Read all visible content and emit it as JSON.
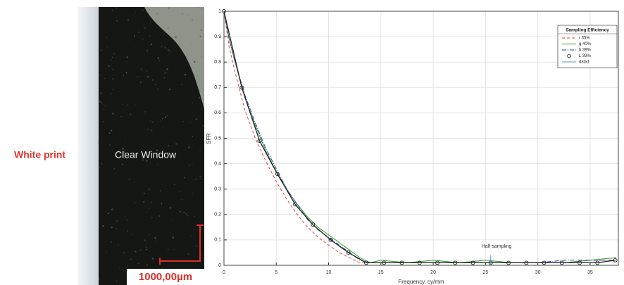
{
  "photo": {
    "left_label": "White print",
    "window_label": "Clear Window",
    "scale_label": "1000,00µm"
  },
  "chart_data": {
    "type": "line",
    "y_label": "SFR",
    "x_label": "Frequency, cy/mm",
    "legend_title": "Sampling Efficiency",
    "legend_position": "upper right",
    "annotation": "Half-sampling",
    "xlim": [
      0,
      37.7
    ],
    "ylim": [
      0,
      1
    ],
    "xticks": [
      0,
      5,
      10,
      15,
      20,
      25,
      30,
      35
    ],
    "yticks": [
      0,
      0.1,
      0.2,
      0.3,
      0.4,
      0.5,
      0.6,
      0.7,
      0.8,
      0.9,
      1
    ],
    "grid": true,
    "series": [
      {
        "name": "r 35%",
        "color": "#e8413c",
        "style": "dashed",
        "x": [
          0,
          0.5,
          1,
          2,
          3,
          4,
          5,
          6,
          7,
          8,
          9,
          10,
          11,
          12,
          13,
          14,
          15,
          17.5,
          20,
          22.5,
          25,
          27.5,
          30,
          32.5,
          35,
          37.5
        ],
        "values": [
          1,
          0.86,
          0.77,
          0.61,
          0.5,
          0.41,
          0.33,
          0.26,
          0.2,
          0.15,
          0.11,
          0.08,
          0.05,
          0.03,
          0.01,
          0.01,
          0.01,
          0.01,
          0.01,
          0.01,
          0.01,
          0.01,
          0.01,
          0.01,
          0.02,
          0.02
        ]
      },
      {
        "name": "g 40%",
        "color": "#2ea02c",
        "style": "solid",
        "x": [
          0,
          0.5,
          1,
          2,
          3,
          4,
          5,
          6,
          7,
          8,
          9,
          10,
          11,
          12,
          13,
          14,
          15,
          17.5,
          20,
          22.5,
          25,
          27.5,
          30,
          32.5,
          35,
          37.5
        ],
        "values": [
          1,
          0.89,
          0.81,
          0.66,
          0.55,
          0.45,
          0.37,
          0.3,
          0.24,
          0.19,
          0.15,
          0.12,
          0.09,
          0.06,
          0.03,
          0.01,
          0.02,
          0.01,
          0.02,
          0.01,
          0.02,
          0.01,
          0.01,
          0.01,
          0.02,
          0.03
        ]
      },
      {
        "name": "b 39%",
        "color": "#2b3fb0",
        "style": "dashdot",
        "x": [
          0,
          0.5,
          1,
          2,
          3,
          4,
          5,
          6,
          7,
          8,
          9,
          10,
          11,
          12,
          13,
          14,
          15,
          17.5,
          20,
          22.5,
          25,
          27.5,
          30,
          32.5,
          35,
          37.5
        ],
        "values": [
          1,
          0.89,
          0.81,
          0.67,
          0.56,
          0.46,
          0.38,
          0.3,
          0.24,
          0.18,
          0.14,
          0.11,
          0.08,
          0.05,
          0.02,
          0.01,
          0.01,
          0.01,
          0.01,
          0.01,
          0.01,
          0.01,
          0.01,
          0.02,
          0.02,
          0.02
        ]
      },
      {
        "name": "L 39%",
        "color": "#222222",
        "style": "solid",
        "marker": "circle",
        "x": [
          0,
          1.7,
          3.4,
          5.1,
          6.8,
          8.5,
          10.2,
          11.9,
          13.6,
          15.3,
          17,
          18.7,
          20.4,
          22.1,
          23.8,
          25.5,
          27.2,
          28.9,
          30.6,
          32.3,
          34,
          35.7,
          37.4
        ],
        "values": [
          1,
          0.7,
          0.49,
          0.36,
          0.24,
          0.16,
          0.1,
          0.05,
          0.01,
          0.01,
          0.01,
          0.01,
          0.01,
          0.01,
          0.01,
          0.01,
          0.01,
          0.01,
          0.01,
          0.01,
          0.01,
          0.01,
          0.02
        ]
      },
      {
        "name": "data1",
        "color": "#4a9ad8",
        "style": "solid",
        "x": [
          25.5,
          25.5
        ],
        "values": [
          0,
          0.04
        ]
      }
    ]
  }
}
